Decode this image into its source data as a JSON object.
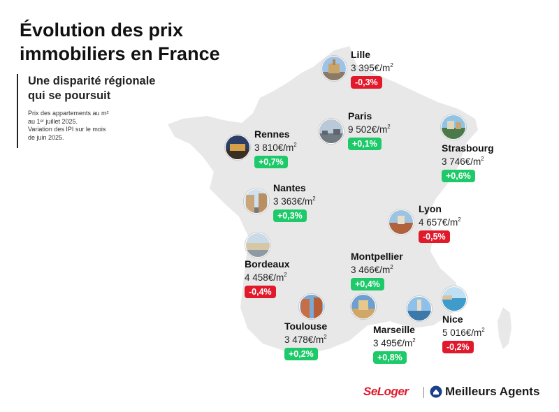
{
  "title": {
    "line1": "Évolution des prix",
    "line2": "immobiliers en France"
  },
  "subtitle": {
    "line1": "Une disparité régionale",
    "line2": "qui se poursuit"
  },
  "note": {
    "line1": "Prix des appartements au m²",
    "line2": "au 1ᵉʳ juillet 2025.",
    "line3": "Variation des IPI sur le mois",
    "line4": "de juin 2025."
  },
  "colors": {
    "map_fill": "#e8e8e8",
    "positive": "#1ec96a",
    "negative": "#e0192b",
    "brand_seloger": "#e0192b"
  },
  "cities": {
    "lille": {
      "name": "Lille",
      "price": "3 395€/m",
      "change": "-0,3%",
      "trend": "down"
    },
    "paris": {
      "name": "Paris",
      "price": "9 502€/m",
      "change": "+0,1%",
      "trend": "up"
    },
    "rennes": {
      "name": "Rennes",
      "price": "3 810€/m",
      "change": "+0,7%",
      "trend": "up"
    },
    "strasbourg": {
      "name": "Strasbourg",
      "price": "3 746€/m",
      "change": "+0,6%",
      "trend": "up"
    },
    "nantes": {
      "name": "Nantes",
      "price": "3 363€/m",
      "change": "+0,3%",
      "trend": "up"
    },
    "lyon": {
      "name": "Lyon",
      "price": "4 657€/m",
      "change": "-0,5%",
      "trend": "down"
    },
    "montpellier": {
      "name": "Montpellier",
      "price": "3 466€/m",
      "change": "+0,4%",
      "trend": "up"
    },
    "bordeaux": {
      "name": "Bordeaux",
      "price": "4 458€/m",
      "change": "-0,4%",
      "trend": "down"
    },
    "toulouse": {
      "name": "Toulouse",
      "price": "3 478€/m",
      "change": "+0,2%",
      "trend": "up"
    },
    "marseille": {
      "name": "Marseille",
      "price": "3 495€/m",
      "change": "+0,8%",
      "trend": "up"
    },
    "nice": {
      "name": "Nice",
      "price": "5 016€/m",
      "change": "-0,2%",
      "trend": "down"
    }
  },
  "unit_exponent": "2",
  "logos": {
    "seloger": "SeLoger",
    "meilleurs_agents": "Meilleurs Agents"
  }
}
